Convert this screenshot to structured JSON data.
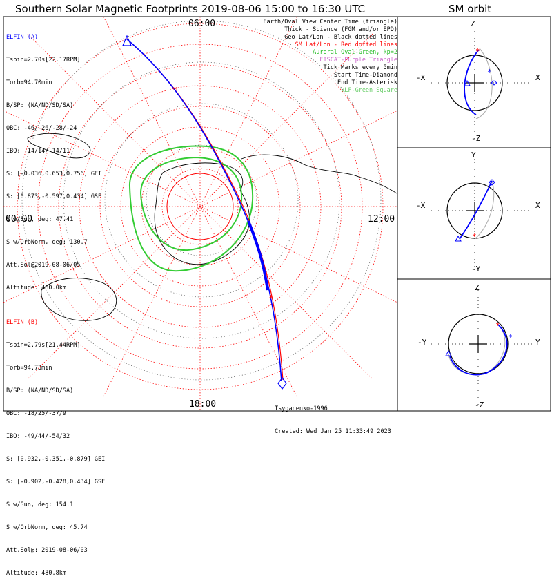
{
  "header": {
    "main_title": "Southern Solar Magnetic Footprints 2019-08-06 15:00 to 16:30 UTC",
    "orbit_title": "SM orbit"
  },
  "legend": [
    {
      "text": "Earth/Oval View Center Time (triangle)",
      "color": "#000000"
    },
    {
      "text": "Thick - Science (FGM and/or EPD)",
      "color": "#000000"
    },
    {
      "text": "Geo Lat/Lon - Black dotted lines",
      "color": "#000000"
    },
    {
      "text": "SM Lat/Lon - Red dotted lines",
      "color": "#ff0000"
    },
    {
      "text": "Auroral Oval-Green, kp=2",
      "color": "#22bb22"
    },
    {
      "text": "EISCAT-Purple Triangle",
      "color": "#cc66cc"
    },
    {
      "text": "Tick Marks every 5min",
      "color": "#000000"
    },
    {
      "text": "Start Time-Diamond",
      "color": "#000000"
    },
    {
      "text": "End Time-Asterisk",
      "color": "#000000"
    },
    {
      "text": "VLF-Green Square",
      "color": "#66cc66"
    }
  ],
  "elfin_a": {
    "name": "ELFIN (A)",
    "color": "#0000ff",
    "lines": [
      "Tspin=2.70s[22.17RPM]",
      "Torb=94.70min",
      "B/SP: (NA/ND/SD/SA)",
      "OBC: -46/-26/-28/-24",
      "IBO: -14/14/-14/11",
      "S: [-0.036,0.653,0.756] GEI",
      "S: [0.873,-0.597,0.434] GSE",
      "S w/Sun, deg: 47.41",
      "S w/OrbNorm, deg: 130.7",
      "Att.Sol@2019-08-06/05",
      "Altitude: 480.0km"
    ]
  },
  "elfin_b": {
    "name": "ELFIN (B)",
    "color": "#ff0000",
    "lines": [
      "Tspin=2.79s[21.44RPM]",
      "Torb=94.73min",
      "B/SP: (NA/ND/SD/SA)",
      "OBC: -18/25/-37/9",
      "IBO: -49/44/-54/32",
      "S: [0.932,-0.351,-0.879] GEI",
      "S: [-0.902,-0.428,0.434] GSE",
      "S w/Sun, deg: 154.1",
      "S w/OrbNorm, deg: 45.74",
      "Att.Sol@: 2019-08-06/03",
      "Altitude: 480.8km"
    ]
  },
  "credits": {
    "author": "Tsyganenko-1996",
    "created": "Created: Wed Jan 25 11:33:49 2023"
  },
  "map_labels": {
    "top": "06:00",
    "left": "00:00",
    "right": "12:00",
    "bottom": "18:00"
  },
  "orbit_panels": [
    {
      "top": "Z",
      "bottom": "-Z",
      "left": "-X",
      "right": "X"
    },
    {
      "top": "Y",
      "bottom": "-Y",
      "left": "-X",
      "right": "X"
    },
    {
      "top": "Z",
      "bottom": "-Z",
      "left": "-Y",
      "right": "Y"
    }
  ],
  "chart_data": {
    "type": "polar-map",
    "elfin_a_track": "blue line from upper-left (start) across pole region to bottom-right (end)",
    "elfin_b_track": "red line nearly coincident with ELFIN A track",
    "auroral_oval_kp": 2
  }
}
